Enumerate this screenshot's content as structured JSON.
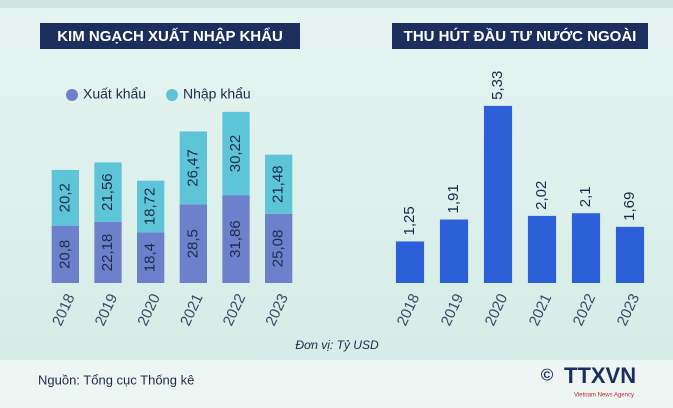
{
  "chart_data": [
    {
      "type": "stacked_bar",
      "title": "KIM NGẠCH XUẤT NHẬP KHẨU",
      "categories": [
        "2018",
        "2019",
        "2020",
        "2021",
        "2022",
        "2023"
      ],
      "series": [
        {
          "name": "Xuất khẩu",
          "color": "#6d80cc",
          "values": [
            20.8,
            22.18,
            18.4,
            28.5,
            31.86,
            25.08
          ],
          "value_labels": [
            "20,8",
            "22,18",
            "18,4",
            "28,5",
            "31,86",
            "25,08"
          ]
        },
        {
          "name": "Nhập khẩu",
          "color": "#5ec4d8",
          "values": [
            20.2,
            21.56,
            18.72,
            26.47,
            30.22,
            21.48
          ],
          "value_labels": [
            "20,2",
            "21,56",
            "18,72",
            "26,47",
            "30,22",
            "21,48"
          ]
        }
      ],
      "ylim": [
        0,
        70
      ]
    },
    {
      "type": "bar",
      "title": "THU HÚT ĐẦU TƯ NƯỚC NGOÀI",
      "categories": [
        "2018",
        "2019",
        "2020",
        "2021",
        "2022",
        "2023"
      ],
      "values": [
        1.25,
        1.91,
        5.33,
        2.02,
        2.1,
        1.69
      ],
      "value_labels": [
        "1,25",
        "1,91",
        "5,33",
        "2,02",
        "2,1",
        "1,69"
      ],
      "color": "#2d5fd8",
      "ylim": [
        0,
        6.5
      ]
    }
  ],
  "footer": {
    "unit": "Đơn vị: Tỷ USD",
    "source": "Nguồn: Tổng cục Thống kê",
    "copyright": "©",
    "logo": "TTXVN",
    "logo_sub": "Vietnam News Agency"
  }
}
